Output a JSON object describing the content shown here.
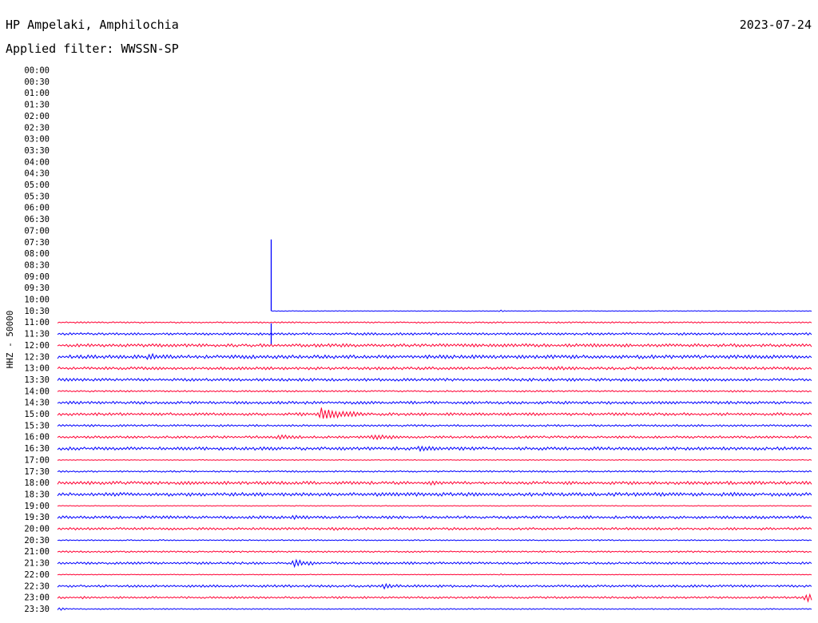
{
  "header": {
    "station": "HP Ampelaki, Amphilochia",
    "date": "2023-07-24",
    "filter": "Applied filter: WWSSN-SP"
  },
  "chart_data": {
    "type": "line",
    "title": "HP Ampelaki, Amphilochia",
    "channel_label": "HHZ - 50000",
    "row_labels": [
      "00:00",
      "00:30",
      "01:00",
      "01:30",
      "02:00",
      "02:30",
      "03:00",
      "03:30",
      "04:00",
      "04:30",
      "05:00",
      "05:30",
      "06:00",
      "06:30",
      "07:00",
      "07:30",
      "08:00",
      "08:30",
      "09:00",
      "09:30",
      "10:00",
      "10:30",
      "11:00",
      "11:30",
      "12:00",
      "12:30",
      "13:00",
      "13:30",
      "14:00",
      "14:30",
      "15:00",
      "15:30",
      "16:00",
      "16:30",
      "17:00",
      "17:30",
      "18:00",
      "18:30",
      "19:00",
      "19:30",
      "20:00",
      "20:30",
      "21:00",
      "21:30",
      "22:00",
      "22:30",
      "23:00",
      "23:30"
    ],
    "x_minutes": [
      0,
      30
    ],
    "trace_start_row": "10:30",
    "trace_start_minute": 8.5,
    "row_colors": {
      "even": "#ff0033",
      "odd": "#0000ff"
    },
    "noise_level": {
      "10:30": 0.15,
      "11:00": 0.35,
      "11:30": 0.6,
      "12:00": 0.8,
      "12:30": 0.9,
      "13:00": 0.7,
      "13:30": 0.7,
      "14:00": 0.4,
      "14:30": 0.7,
      "15:00": 0.7,
      "15:30": 0.5,
      "16:00": 0.6,
      "16:30": 0.8,
      "17:00": 0.2,
      "17:30": 0.4,
      "18:00": 0.8,
      "18:30": 0.9,
      "19:00": 0.2,
      "19:30": 0.7,
      "20:00": 0.6,
      "20:30": 0.3,
      "21:00": 0.4,
      "21:30": 0.6,
      "22:00": 0.2,
      "22:30": 0.6,
      "23:00": 0.5,
      "23:30": 0.3
    },
    "events": [
      {
        "row": "10:30",
        "minute": 8.5,
        "amplitude": 6.4,
        "duration": 0.12,
        "direction": "up",
        "spike": true
      },
      {
        "row": "10:30",
        "minute": 17.6,
        "amplitude": 0.25,
        "duration": 0.3
      },
      {
        "row": "11:30",
        "minute": 8.5,
        "amplitude": 1.9,
        "duration": 0.1,
        "spike": true
      },
      {
        "row": "12:30",
        "minute": 3.6,
        "amplitude": 0.5,
        "duration": 0.8
      },
      {
        "row": "13:00",
        "minute": 19.8,
        "amplitude": 0.25,
        "duration": 0.8
      },
      {
        "row": "14:00",
        "minute": 26.9,
        "amplitude": 0.2,
        "duration": 0.3
      },
      {
        "row": "15:00",
        "minute": 10.5,
        "amplitude": 1.6,
        "duration": 1.6
      },
      {
        "row": "15:00",
        "minute": 9.6,
        "amplitude": 0.25,
        "duration": 0.4
      },
      {
        "row": "16:00",
        "minute": 8.8,
        "amplitude": 0.45,
        "duration": 0.9
      },
      {
        "row": "16:00",
        "minute": 12.6,
        "amplitude": 0.55,
        "duration": 1.2
      },
      {
        "row": "16:00",
        "minute": 7.9,
        "amplitude": 0.15,
        "duration": 0.3
      },
      {
        "row": "16:30",
        "minute": 14.4,
        "amplitude": 0.45,
        "duration": 0.7
      },
      {
        "row": "18:00",
        "minute": 14.8,
        "amplitude": 0.2,
        "duration": 0.7
      },
      {
        "row": "18:30",
        "minute": 27.0,
        "amplitude": 0.15,
        "duration": 0.4
      },
      {
        "row": "19:30",
        "minute": 9.4,
        "amplitude": 0.3,
        "duration": 0.7
      },
      {
        "row": "20:00",
        "minute": 11.0,
        "amplitude": 0.2,
        "duration": 0.6
      },
      {
        "row": "20:00",
        "minute": 9.3,
        "amplitude": 0.12,
        "duration": 0.3
      },
      {
        "row": "21:30",
        "minute": 9.4,
        "amplitude": 0.9,
        "duration": 0.9
      },
      {
        "row": "21:30",
        "minute": 27.0,
        "amplitude": 0.15,
        "duration": 0.3
      },
      {
        "row": "22:00",
        "minute": 17.6,
        "amplitude": 0.25,
        "duration": 0.2
      },
      {
        "row": "22:30",
        "minute": 13.0,
        "amplitude": 0.6,
        "duration": 0.5
      },
      {
        "row": "23:00",
        "minute": 29.8,
        "amplitude": 1.3,
        "duration": 0.5
      },
      {
        "row": "23:00",
        "minute": 1.0,
        "amplitude": 0.2,
        "duration": 0.3
      },
      {
        "row": "23:30",
        "minute": 0.1,
        "amplitude": 0.4,
        "duration": 0.3
      }
    ]
  }
}
